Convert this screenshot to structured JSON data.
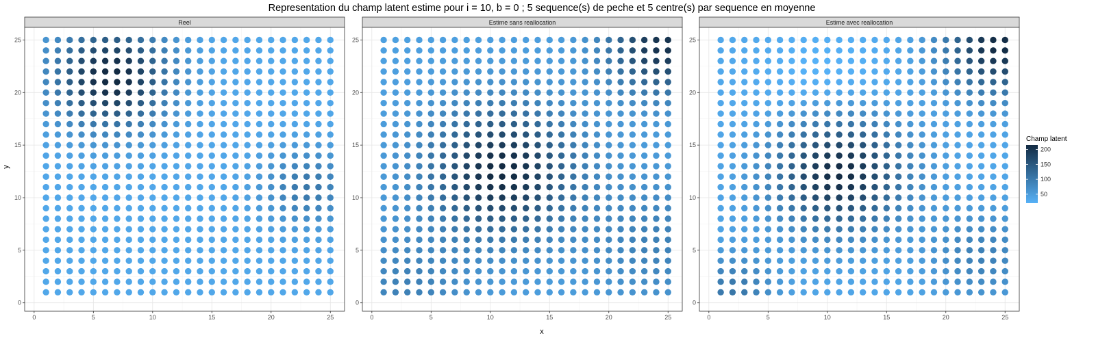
{
  "chart_data": {
    "type": "scatter",
    "title": "Representation du champ latent estime pour i = 10, b = 0 ; 5 sequence(s) de peche et 5 centre(s) par sequence en moyenne",
    "xlabel": "x",
    "ylabel": "y",
    "xlim": [
      -0.8,
      26.2
    ],
    "ylim": [
      -0.8,
      26.2
    ],
    "x_ticks": [
      0,
      5,
      10,
      15,
      20,
      25
    ],
    "y_ticks": [
      0,
      5,
      10,
      15,
      20,
      25
    ],
    "grid": true,
    "grid_size": [
      25,
      25
    ],
    "panels": [
      {
        "label": "Reel",
        "base": 35,
        "hotspots": [
          {
            "x": 6.5,
            "y": 21.5,
            "peak": 190,
            "sigma": 3.3
          },
          {
            "x": 23,
            "y": 11,
            "peak": 70,
            "sigma": 2.5
          }
        ]
      },
      {
        "label": "Estime sans reallocation",
        "base": 45,
        "hotspots": [
          {
            "x": 11,
            "y": 12.5,
            "peak": 175,
            "sigma": 4.2
          },
          {
            "x": 24.5,
            "y": 24.5,
            "peak": 160,
            "sigma": 3.2
          },
          {
            "x": 3,
            "y": 1.5,
            "peak": 45,
            "sigma": 3.5
          },
          {
            "x": 24,
            "y": 6,
            "peak": 45,
            "sigma": 4
          }
        ]
      },
      {
        "label": "Estime avec reallocation",
        "base": 35,
        "hotspots": [
          {
            "x": 11,
            "y": 12.5,
            "peak": 185,
            "sigma": 3.8
          },
          {
            "x": 24.5,
            "y": 24.5,
            "peak": 180,
            "sigma": 3.2
          },
          {
            "x": 2,
            "y": 1,
            "peak": 70,
            "sigma": 2.5
          },
          {
            "x": 23,
            "y": 4.5,
            "peak": 55,
            "sigma": 3
          }
        ],
        "holes": [
          {
            "x": 10,
            "y": 20,
            "depth": 25,
            "sigma": 4
          }
        ]
      }
    ],
    "legend": {
      "title": "Champ latent",
      "min": 20,
      "max": 215,
      "ticks": [
        50,
        100,
        150,
        200
      ],
      "color_low": "#56B1F7",
      "color_high": "#132B43",
      "placement": "right"
    }
  }
}
